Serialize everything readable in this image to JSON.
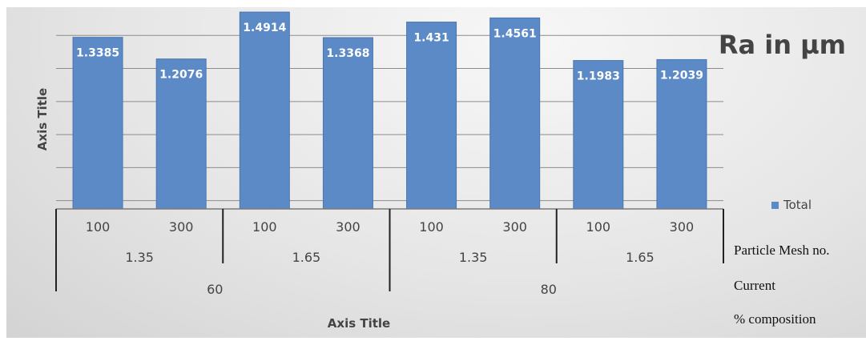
{
  "chart_data": {
    "type": "bar",
    "title": "Ra in µm",
    "xlabel": "Axis Title",
    "ylabel": "Axis Title",
    "categories": [
      "100",
      "300",
      "100",
      "300",
      "100",
      "300",
      "100",
      "300"
    ],
    "category_levels": [
      {
        "labels": [
          "100",
          "300",
          "100",
          "300",
          "100",
          "300",
          "100",
          "300"
        ]
      },
      {
        "labels": [
          "1.35",
          "1.65",
          "1.35",
          "1.65"
        ]
      },
      {
        "labels": [
          "60",
          "80"
        ]
      }
    ],
    "series": [
      {
        "name": "Total",
        "values": [
          1.3385,
          1.2076,
          1.4914,
          1.3368,
          1.431,
          1.4561,
          1.1983,
          1.2039
        ]
      }
    ],
    "data_labels": [
      "1.3385",
      "1.2076",
      "1.4914",
      "1.3368",
      "1.431",
      "1.4561",
      "1.1983",
      "1.2039"
    ],
    "ylim": [
      0.3,
      1.55
    ],
    "grid": true,
    "legend_position": "right",
    "colors": {
      "bar": "#5b8ac6",
      "bar_edge": "#4a76b0",
      "legend_swatch": "#5b8ac6"
    }
  },
  "side_labels": {
    "particle_mesh": "Particle Mesh no.",
    "current": "Current",
    "composition": "% composition"
  }
}
